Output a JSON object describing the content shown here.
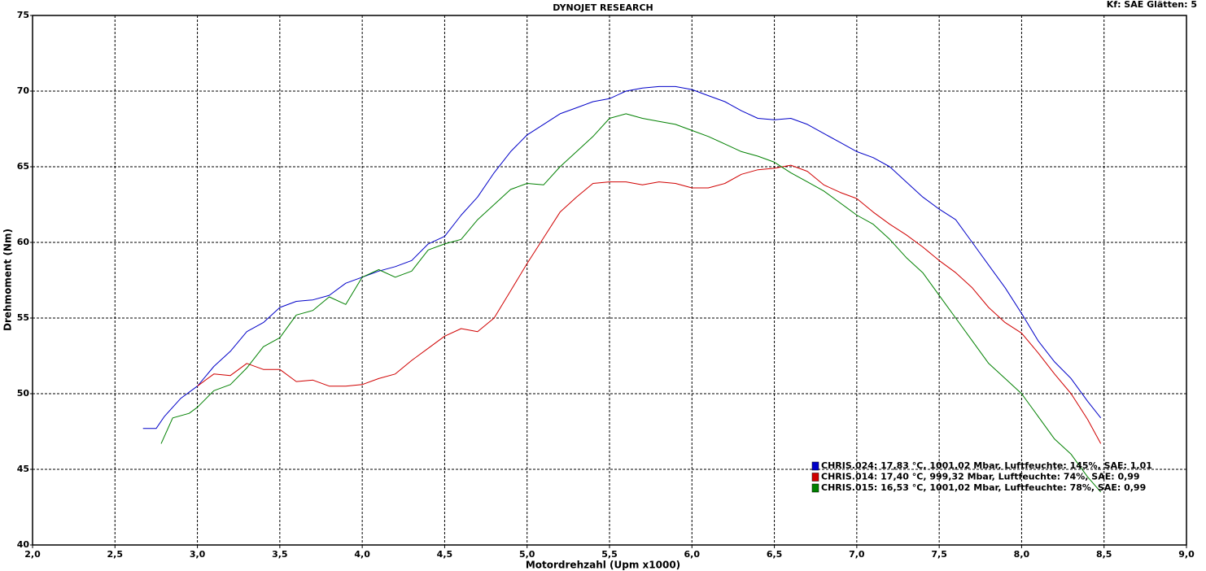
{
  "chart_data": {
    "type": "line",
    "title": "DYNOJET RESEARCH",
    "subtitle": "Kf: SAE  Glätten: 5",
    "xlabel": "Motordrehzahl (Upm x1000)",
    "ylabel": "Drehmoment (Nm)",
    "xlim": [
      2,
      9
    ],
    "ylim": [
      40,
      75
    ],
    "xticks": [
      {
        "value": 2,
        "label": "2,0"
      },
      {
        "value": 2.5,
        "label": "2,5"
      },
      {
        "value": 3,
        "label": "3,0"
      },
      {
        "value": 3.5,
        "label": "3,5"
      },
      {
        "value": 4,
        "label": "4,0"
      },
      {
        "value": 4.5,
        "label": "4,5"
      },
      {
        "value": 5,
        "label": "5,0"
      },
      {
        "value": 5.5,
        "label": "5,5"
      },
      {
        "value": 6,
        "label": "6,0"
      },
      {
        "value": 6.5,
        "label": "6,5"
      },
      {
        "value": 7,
        "label": "7,0"
      },
      {
        "value": 7.5,
        "label": "7,5"
      },
      {
        "value": 8,
        "label": "8,0"
      },
      {
        "value": 8.5,
        "label": "8,5"
      },
      {
        "value": 9,
        "label": "9,0"
      }
    ],
    "yticks": [
      40,
      45,
      50,
      55,
      60,
      65,
      70,
      75
    ],
    "grid": true,
    "legend": "lower right",
    "series": [
      {
        "name": "CHRIS.024: 17,83 °C, 1001,02 Mbar, Luftfeuchte: 145%, SAE: 1,01",
        "color": "#0000c8",
        "x": [
          2.67,
          2.75,
          2.8,
          2.9,
          3.0,
          3.1,
          3.2,
          3.3,
          3.4,
          3.5,
          3.6,
          3.7,
          3.8,
          3.9,
          4.0,
          4.1,
          4.2,
          4.3,
          4.4,
          4.5,
          4.6,
          4.7,
          4.8,
          4.9,
          5.0,
          5.1,
          5.2,
          5.3,
          5.4,
          5.5,
          5.6,
          5.7,
          5.8,
          5.9,
          6.0,
          6.1,
          6.2,
          6.3,
          6.4,
          6.5,
          6.6,
          6.7,
          6.8,
          6.9,
          7.0,
          7.1,
          7.2,
          7.3,
          7.4,
          7.5,
          7.6,
          7.7,
          7.8,
          7.9,
          8.0,
          8.1,
          8.2,
          8.3,
          8.4,
          8.48
        ],
        "values": [
          47.7,
          47.7,
          48.5,
          49.7,
          50.5,
          51.8,
          52.8,
          54.1,
          54.7,
          55.7,
          56.1,
          56.2,
          56.5,
          57.3,
          57.7,
          58.1,
          58.4,
          58.8,
          59.9,
          60.4,
          61.8,
          63.0,
          64.6,
          66.0,
          67.1,
          67.8,
          68.5,
          68.9,
          69.3,
          69.5,
          70.0,
          70.2,
          70.3,
          70.3,
          70.1,
          69.7,
          69.3,
          68.7,
          68.2,
          68.1,
          68.2,
          67.8,
          67.2,
          66.6,
          66.0,
          65.6,
          65.0,
          64.0,
          63.0,
          62.2,
          61.5,
          60.0,
          58.5,
          57.0,
          55.3,
          53.5,
          52.1,
          51.0,
          49.5,
          48.4
        ]
      },
      {
        "name": "CHRIS.014: 17,40 °C, 999,32 Mbar, Luftfeuchte: 74%, SAE: 0,99",
        "color": "#d00000",
        "x": [
          3.0,
          3.1,
          3.2,
          3.3,
          3.4,
          3.5,
          3.6,
          3.7,
          3.8,
          3.9,
          4.0,
          4.1,
          4.2,
          4.3,
          4.4,
          4.5,
          4.6,
          4.7,
          4.8,
          4.9,
          5.0,
          5.1,
          5.2,
          5.3,
          5.4,
          5.5,
          5.6,
          5.7,
          5.8,
          5.9,
          6.0,
          6.1,
          6.2,
          6.3,
          6.4,
          6.5,
          6.6,
          6.7,
          6.8,
          6.9,
          7.0,
          7.1,
          7.2,
          7.3,
          7.4,
          7.5,
          7.6,
          7.7,
          7.8,
          7.9,
          8.0,
          8.1,
          8.2,
          8.3,
          8.4,
          8.48
        ],
        "values": [
          50.5,
          51.3,
          51.2,
          52.0,
          51.6,
          51.6,
          50.8,
          50.9,
          50.5,
          50.5,
          50.6,
          51.0,
          51.3,
          52.2,
          53.0,
          53.8,
          54.3,
          54.1,
          55.0,
          56.8,
          58.6,
          60.3,
          62.0,
          63.0,
          63.9,
          64.0,
          64.0,
          63.8,
          64.0,
          63.9,
          63.6,
          63.6,
          63.9,
          64.5,
          64.8,
          64.9,
          65.1,
          64.7,
          63.8,
          63.3,
          62.9,
          62.0,
          61.2,
          60.5,
          59.7,
          58.8,
          58.0,
          57.0,
          55.7,
          54.7,
          54.0,
          52.7,
          51.3,
          50.0,
          48.3,
          46.7
        ]
      },
      {
        "name": "CHRIS.015: 16,53 °C, 1001,02 Mbar, Luftfeuchte: 78%, SAE: 0,99",
        "color": "#008000",
        "x": [
          2.78,
          2.85,
          2.95,
          3.0,
          3.1,
          3.2,
          3.3,
          3.4,
          3.5,
          3.6,
          3.7,
          3.8,
          3.9,
          4.0,
          4.1,
          4.2,
          4.3,
          4.4,
          4.5,
          4.6,
          4.7,
          4.8,
          4.9,
          5.0,
          5.1,
          5.2,
          5.3,
          5.4,
          5.5,
          5.6,
          5.7,
          5.8,
          5.9,
          6.0,
          6.1,
          6.2,
          6.3,
          6.4,
          6.5,
          6.6,
          6.7,
          6.8,
          6.9,
          7.0,
          7.1,
          7.2,
          7.3,
          7.4,
          7.5,
          7.6,
          7.7,
          7.8,
          7.9,
          8.0,
          8.1,
          8.2,
          8.3,
          8.4,
          8.48
        ],
        "values": [
          46.7,
          48.4,
          48.7,
          49.1,
          50.2,
          50.6,
          51.7,
          53.1,
          53.7,
          55.2,
          55.5,
          56.4,
          55.9,
          57.7,
          58.2,
          57.7,
          58.1,
          59.5,
          59.9,
          60.2,
          61.5,
          62.5,
          63.5,
          63.9,
          63.8,
          65.0,
          66.0,
          67.0,
          68.2,
          68.5,
          68.2,
          68.0,
          67.8,
          67.4,
          67.0,
          66.5,
          66.0,
          65.7,
          65.3,
          64.6,
          64.0,
          63.4,
          62.6,
          61.8,
          61.2,
          60.2,
          59.0,
          58.0,
          56.5,
          55.0,
          53.5,
          52.0,
          51.0,
          50.0,
          48.5,
          47.0,
          46.0,
          44.5,
          43.5
        ]
      }
    ]
  }
}
